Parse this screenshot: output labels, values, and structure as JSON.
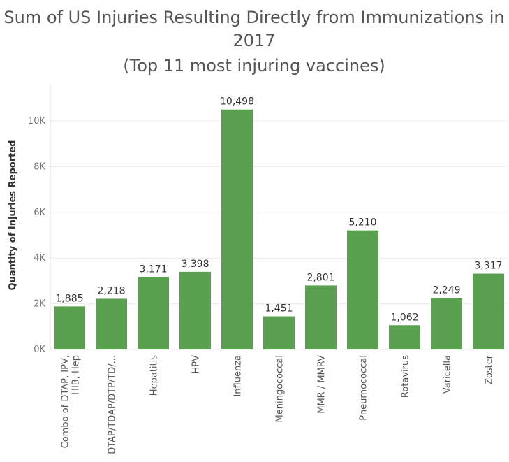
{
  "chart_data": {
    "type": "bar",
    "title_lines": [
      "Sum  of US Injuries Resulting Directly from Immunizations in",
      "2017",
      "(Top 11 most injuring vaccines)"
    ],
    "ylabel": "Quantity of Injuries Reported",
    "ylim": [
      0,
      11000
    ],
    "yticks": [
      0,
      2000,
      4000,
      6000,
      8000,
      10000
    ],
    "ytick_labels": [
      "0K",
      "2K",
      "4K",
      "6K",
      "8K",
      "10K"
    ],
    "grid": true,
    "categories": [
      [
        "Combo of DTAP, IPV,",
        "HIB, Hep"
      ],
      [
        "DTAP/TDAP/DTP/TD/..."
      ],
      [
        "Hepatitis"
      ],
      [
        "HPV"
      ],
      [
        "Influenza"
      ],
      [
        "Meningococcal"
      ],
      [
        "MMR / MMRV"
      ],
      [
        "Pneumococcal"
      ],
      [
        "Rotavirus"
      ],
      [
        "Varicella"
      ],
      [
        "Zoster"
      ]
    ],
    "values": [
      1885,
      2218,
      3171,
      3398,
      10498,
      1451,
      2801,
      5210,
      1062,
      2249,
      3317
    ],
    "value_labels": [
      "1,885",
      "2,218",
      "3,171",
      "3,398",
      "10,498",
      "1,451",
      "2,801",
      "5,210",
      "1,062",
      "2,249",
      "3,317"
    ],
    "bar_color": "#59a14f",
    "grid_color": "#ececec"
  }
}
